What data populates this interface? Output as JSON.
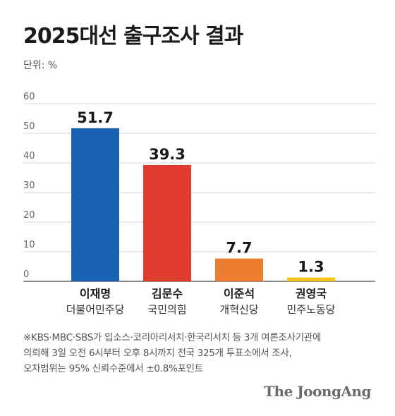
{
  "chart_data": {
    "type": "bar",
    "title": "2025대선 출구조사 결과",
    "unit_label": "단위: %",
    "categories": [
      "이재명",
      "김문수",
      "이준석",
      "권영국"
    ],
    "parties": [
      "더불어민주당",
      "국민의힘",
      "개혁신당",
      "민주노동당"
    ],
    "values": [
      51.7,
      39.3,
      7.7,
      1.3
    ],
    "value_labels": [
      "51.7",
      "39.3",
      "7.7",
      "1.3"
    ],
    "colors": [
      "#1a62b4",
      "#e23b2e",
      "#ef7d31",
      "#f6c417"
    ],
    "ylim": [
      0,
      60
    ],
    "yticks": [
      0,
      10,
      20,
      30,
      40,
      50,
      60
    ],
    "grid": true,
    "xlabel": "",
    "ylabel": ""
  },
  "note": {
    "lines": [
      "※KBS·MBC·SBS가 입소스·코리아리서치·한국리서치 등 3개 여론조사기관에",
      "의뢰해 3일 오전 6시부터 오후 8시까지 전국 325개 투표소에서 조사,",
      "오차범위는 95% 신뢰수준에서 ±0.8%포인트"
    ]
  },
  "brand": "The JoongAng"
}
